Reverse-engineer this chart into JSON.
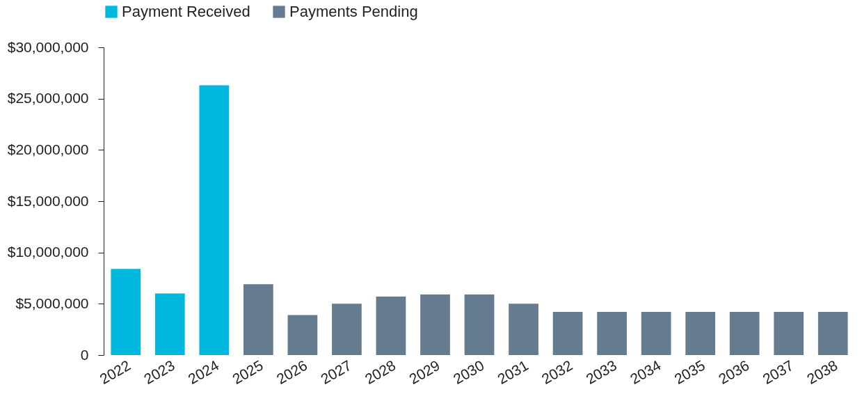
{
  "chart_data": {
    "type": "bar",
    "categories": [
      "2022",
      "2023",
      "2024",
      "2025",
      "2026",
      "2027",
      "2028",
      "2029",
      "2030",
      "2031",
      "2032",
      "2033",
      "2034",
      "2035",
      "2036",
      "2037",
      "2038"
    ],
    "series": [
      {
        "name": "Payment Received",
        "color": "#00b8de",
        "values": [
          8400000.0,
          6000000.0,
          26300000.0,
          null,
          null,
          null,
          null,
          null,
          null,
          null,
          null,
          null,
          null,
          null,
          null,
          null,
          null
        ]
      },
      {
        "name": "Payments Pending",
        "color": "#657b8f",
        "values": [
          null,
          null,
          null,
          6900000.0,
          3900000.0,
          5000000.0,
          5700000.0,
          5900000.0,
          5900000.0,
          5000000.0,
          4200000.0,
          4200000.0,
          4200000.0,
          4200000.0,
          4200000.0,
          4200000.0,
          4200000.0
        ]
      }
    ],
    "ylim": [
      0,
      30000000
    ],
    "yticks": [
      0,
      {
        "value": 5000000,
        "label": "$5,000,000"
      },
      {
        "value": 10000000,
        "label": "$10,000,000"
      },
      {
        "value": 15000000,
        "label": "$15,000,000"
      },
      {
        "value": 20000000,
        "label": "$20,000,000"
      },
      {
        "value": 25000000,
        "label": "$25,000,000"
      },
      {
        "value": 30000000,
        "label": "$30,000,000"
      }
    ],
    "legend": "top left",
    "grid": false
  }
}
